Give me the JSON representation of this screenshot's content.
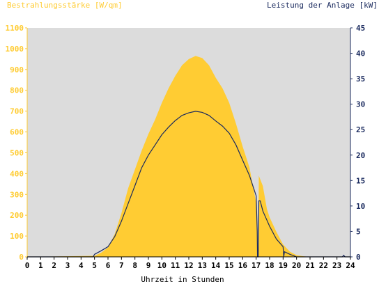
{
  "chart_data": {
    "type": "area",
    "title_left": "Bestrahlungsstärke [W/qm]",
    "title_right": "Leistung der Anlage [kW]",
    "xlabel": "Uhrzeit in Stunden",
    "xlim": [
      0,
      24
    ],
    "ylim_left": [
      0,
      1100
    ],
    "ylim_right": [
      0,
      45
    ],
    "grid": false,
    "colors": {
      "plot_background": "#dcdcdc",
      "irradiance_fill": "#ffcc33",
      "power_line": "#1a2a5e",
      "left_axis_text": "#ffcc33",
      "right_axis_text": "#1a2a5e"
    },
    "x_ticks": [
      "0",
      "1",
      "2",
      "3",
      "4",
      "5",
      "6",
      "7",
      "8",
      "9",
      "10",
      "11",
      "12",
      "13",
      "14",
      "15",
      "16",
      "17",
      "18",
      "19",
      "20",
      "21",
      "22",
      "23",
      "24"
    ],
    "left_ticks": [
      "0",
      "100",
      "200",
      "300",
      "400",
      "500",
      "600",
      "700",
      "800",
      "900",
      "1000",
      "1100"
    ],
    "right_ticks": [
      "0",
      "5",
      "10",
      "15",
      "20",
      "25",
      "30",
      "35",
      "40",
      "45"
    ],
    "series": [
      {
        "name": "Bestrahlungsstärke",
        "axis": "left",
        "kind": "area",
        "x": [
          0,
          5.0,
          5.5,
          6.0,
          6.5,
          7.0,
          7.5,
          8.0,
          8.5,
          9.0,
          9.5,
          10.0,
          10.5,
          11.0,
          11.5,
          12.0,
          12.5,
          13.0,
          13.5,
          14.0,
          14.5,
          15.0,
          15.5,
          16.0,
          16.5,
          17.0,
          17.1,
          17.15,
          17.2,
          17.5,
          17.8,
          18.0,
          18.5,
          19.0,
          19.5,
          20.0,
          20.5,
          21.0,
          24.0
        ],
        "values": [
          0,
          5,
          20,
          45,
          110,
          210,
          330,
          420,
          510,
          590,
          660,
          740,
          810,
          870,
          920,
          950,
          965,
          955,
          920,
          860,
          810,
          740,
          640,
          530,
          430,
          260,
          130,
          0,
          390,
          340,
          230,
          190,
          120,
          60,
          25,
          8,
          3,
          0,
          0
        ]
      },
      {
        "name": "Leistung der Anlage",
        "axis": "right",
        "kind": "line",
        "x": [
          0,
          4.9,
          5.0,
          5.5,
          6.0,
          6.5,
          7.0,
          7.5,
          8.0,
          8.5,
          9.0,
          9.5,
          10.0,
          10.5,
          11.0,
          11.5,
          12.0,
          12.5,
          13.0,
          13.5,
          14.0,
          14.5,
          15.0,
          15.5,
          16.0,
          16.5,
          17.0,
          17.08,
          17.1,
          17.15,
          17.2,
          17.3,
          17.5,
          18.0,
          18.5,
          19.0,
          19.05,
          19.1,
          19.5,
          20.0,
          20.5,
          23.4,
          23.5,
          23.6,
          24.0
        ],
        "values": [
          0,
          0,
          0.5,
          1.2,
          2.0,
          4.0,
          7.0,
          10.5,
          14.0,
          17.5,
          20.0,
          22.0,
          24.0,
          25.5,
          26.8,
          27.8,
          28.3,
          28.6,
          28.4,
          27.8,
          26.7,
          25.7,
          24.3,
          22.0,
          19.0,
          16.0,
          12.0,
          5.0,
          0,
          0,
          11.0,
          11.0,
          9.0,
          6.0,
          3.5,
          2.0,
          0,
          1.0,
          0.5,
          0,
          0,
          0,
          0.3,
          0,
          0
        ]
      }
    ]
  }
}
